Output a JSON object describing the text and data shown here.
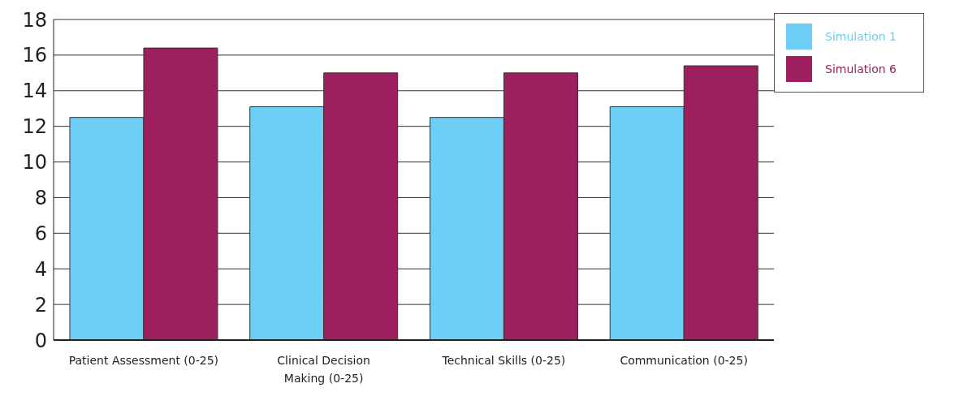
{
  "chart_data": {
    "type": "bar",
    "categories": [
      "Patient Assessment (0-25)",
      "Clinical Decision Making (0-25)",
      "Technical Skills (0-25)",
      "Communication (0-25)"
    ],
    "series": [
      {
        "name": "Simulation 1",
        "color": "#6dcff6",
        "values": [
          12.5,
          13.1,
          12.5,
          13.1
        ]
      },
      {
        "name": "Simulation 6",
        "color": "#9e1f5e",
        "values": [
          16.4,
          15.0,
          15.0,
          15.4
        ]
      }
    ],
    "ylim": [
      0,
      18
    ],
    "yticks": [
      0,
      2,
      4,
      6,
      8,
      10,
      12,
      14,
      16,
      18
    ],
    "grid": "y",
    "legend": "top right"
  }
}
